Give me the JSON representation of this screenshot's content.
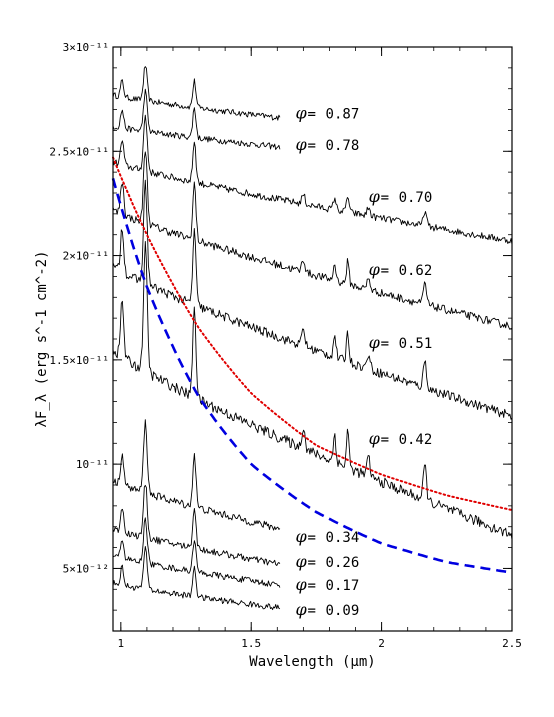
{
  "chart_data": {
    "type": "line",
    "title": "",
    "xlabel": "Wavelength (μm)",
    "ylabel": "λF_λ (erg s^-1 cm^-2)",
    "xlim": [
      0.97,
      2.5
    ],
    "ylim": [
      2e-12,
      3e-11
    ],
    "x_ticks": [
      {
        "value": 1.0,
        "label": "1"
      },
      {
        "value": 1.5,
        "label": "1.5"
      },
      {
        "value": 2.0,
        "label": "2"
      },
      {
        "value": 2.5,
        "label": "2.5"
      }
    ],
    "y_ticks": [
      {
        "value": 5e-12,
        "label": "5×10⁻¹²"
      },
      {
        "value": 1e-11,
        "label": "10⁻¹¹"
      },
      {
        "value": 1.5e-11,
        "label": "1.5×10⁻¹¹"
      },
      {
        "value": 2e-11,
        "label": "2×10⁻¹¹"
      },
      {
        "value": 2.5e-11,
        "label": "2.5×10⁻¹¹"
      },
      {
        "value": 3e-11,
        "label": "3×10⁻¹¹"
      }
    ],
    "phase_symbol": "φ",
    "series": [
      {
        "phase": "0.87",
        "x_end": 1.61,
        "start": 2.77e-11,
        "end": 2.66e-11,
        "label_y": 2.68e-11,
        "peak_scale": 0.7
      },
      {
        "phase": "0.78",
        "x_end": 1.61,
        "start": 2.62e-11,
        "end": 2.52e-11,
        "label_y": 2.53e-11,
        "peak_scale": 0.8
      },
      {
        "phase": "0.70",
        "x_end": 2.5,
        "start": 2.45e-11,
        "end": 2.07e-11,
        "label_y": 2.28e-11,
        "peak_scale": 1.1
      },
      {
        "phase": "0.62",
        "x_end": 2.5,
        "start": 2.22e-11,
        "end": 1.66e-11,
        "label_y": 1.93e-11,
        "peak_scale": 1.5
      },
      {
        "phase": "0.51",
        "x_end": 2.5,
        "start": 1.95e-11,
        "end": 1.23e-11,
        "label_y": 1.58e-11,
        "peak_scale": 2.0
      },
      {
        "phase": "0.42",
        "x_end": 2.5,
        "start": 1.55e-11,
        "end": 6.6e-12,
        "label_y": 1.12e-11,
        "peak_scale": 2.5
      },
      {
        "phase": "0.34",
        "x_end": 1.61,
        "start": 9.2e-12,
        "end": 6.9e-12,
        "label_y": 6.5e-12,
        "peak_scale": 1.4
      },
      {
        "phase": "0.26",
        "x_end": 1.61,
        "start": 6.9e-12,
        "end": 5.2e-12,
        "label_y": 5.3e-12,
        "peak_scale": 1.1
      },
      {
        "phase": "0.17",
        "x_end": 1.61,
        "start": 5.6e-12,
        "end": 4.2e-12,
        "label_y": 4.2e-12,
        "peak_scale": 0.9
      },
      {
        "phase": "0.09",
        "x_end": 1.61,
        "start": 4.3e-12,
        "end": 3.1e-12,
        "label_y": 3e-12,
        "peak_scale": 0.8
      }
    ],
    "model_curves": [
      {
        "style": "dotted",
        "color": "#e00000",
        "x": [
          0.97,
          1.1,
          1.3,
          1.5,
          1.75,
          2.0,
          2.25,
          2.5
        ],
        "y": [
          2.47e-11,
          2.1e-11,
          1.65e-11,
          1.34e-11,
          1.09e-11,
          9.5e-12,
          8.5e-12,
          7.8e-12
        ]
      },
      {
        "style": "dashed",
        "color": "#0000e0",
        "x": [
          0.97,
          1.1,
          1.3,
          1.5,
          1.75,
          2.0,
          2.25,
          2.5
        ],
        "y": [
          2.37e-11,
          1.85e-11,
          1.32e-11,
          1e-11,
          7.7e-12,
          6.2e-12,
          5.3e-12,
          4.8e-12
        ]
      }
    ]
  }
}
